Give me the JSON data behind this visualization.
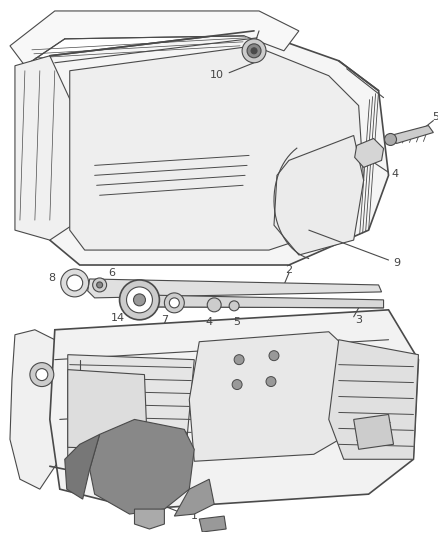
{
  "bg_color": "#ffffff",
  "line_color": "#4a4a4a",
  "label_color": "#555555",
  "figsize": [
    4.38,
    5.33
  ],
  "dpi": 100
}
